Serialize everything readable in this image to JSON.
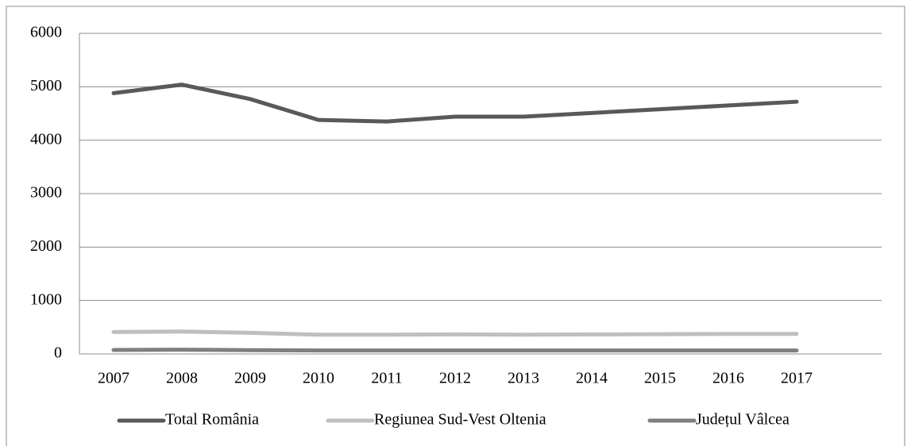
{
  "chart_data": {
    "type": "line",
    "categories": [
      "2007",
      "2008",
      "2009",
      "2010",
      "2011",
      "2012",
      "2013",
      "2014",
      "2015",
      "2016",
      "2017"
    ],
    "series": [
      {
        "name": "Total România",
        "color": "#595959",
        "values": [
          4880,
          5040,
          4770,
          4380,
          4350,
          4440,
          4440,
          4510,
          4580,
          4650,
          4720
        ]
      },
      {
        "name": "Regiunea Sud-Vest Oltenia",
        "color": "#bfbfbf",
        "values": [
          410,
          420,
          395,
          360,
          360,
          365,
          360,
          365,
          370,
          375,
          375
        ]
      },
      {
        "name": "Județul Vâlcea",
        "color": "#7f7f7f",
        "values": [
          75,
          80,
          70,
          65,
          65,
          65,
          65,
          65,
          65,
          65,
          65
        ]
      }
    ],
    "ylim": [
      0,
      6000
    ],
    "yticks": [
      0,
      1000,
      2000,
      3000,
      4000,
      5000,
      6000
    ],
    "grid": true,
    "legend": "bottom"
  }
}
